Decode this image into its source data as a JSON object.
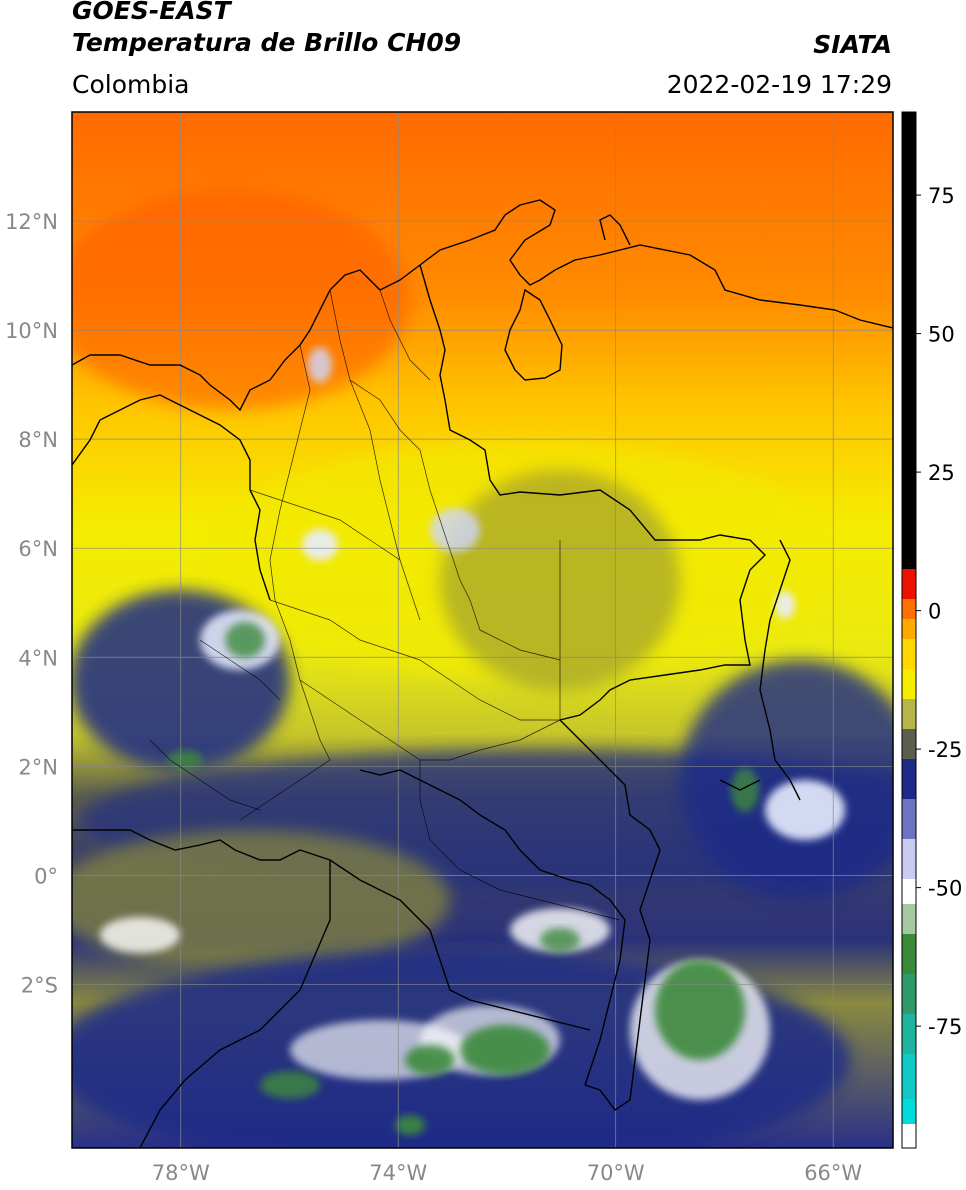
{
  "header": {
    "satellite": "GOES-EAST",
    "product": "Temperatura de Brillo CH09",
    "region": "Colombia",
    "source": "SIATA",
    "datetime": "2022-02-19 17:29"
  },
  "map": {
    "lon_range": [
      -80.0,
      -64.9
    ],
    "lat_range": [
      -5.0,
      14.0
    ],
    "lat_ticks": [
      {
        "value": 12,
        "label": "12°N"
      },
      {
        "value": 10,
        "label": "10°N"
      },
      {
        "value": 8,
        "label": "8°N"
      },
      {
        "value": 6,
        "label": "6°N"
      },
      {
        "value": 4,
        "label": "4°N"
      },
      {
        "value": 2,
        "label": "2°N"
      },
      {
        "value": 0,
        "label": "0°"
      },
      {
        "value": -2,
        "label": "2°S"
      }
    ],
    "lon_ticks": [
      {
        "value": -78,
        "label": "78°W"
      },
      {
        "value": -74,
        "label": "74°W"
      },
      {
        "value": -70,
        "label": "70°W"
      },
      {
        "value": -66,
        "label": "66°W"
      }
    ],
    "gridlines": true
  },
  "colorbar": {
    "range": [
      -97,
      90
    ],
    "ticks": [
      {
        "value": 75,
        "label": "75"
      },
      {
        "value": 50,
        "label": "50"
      },
      {
        "value": 25,
        "label": "25"
      },
      {
        "value": 0,
        "label": "0"
      },
      {
        "value": -25,
        "label": "-25"
      },
      {
        "value": -50,
        "label": "-50"
      },
      {
        "value": -75,
        "label": "-75"
      }
    ]
  },
  "colors": {
    "warm": "#ff6a00",
    "mild": "#f5ec00",
    "olive": "#888a3a",
    "navy": "#1e2a80",
    "white": "#ffffff",
    "green": "#3a8a3a",
    "cyan": "#00dcdc",
    "warning": "#ff0000",
    "hot": "#000000",
    "grid": "#888888",
    "border": "#000000"
  }
}
